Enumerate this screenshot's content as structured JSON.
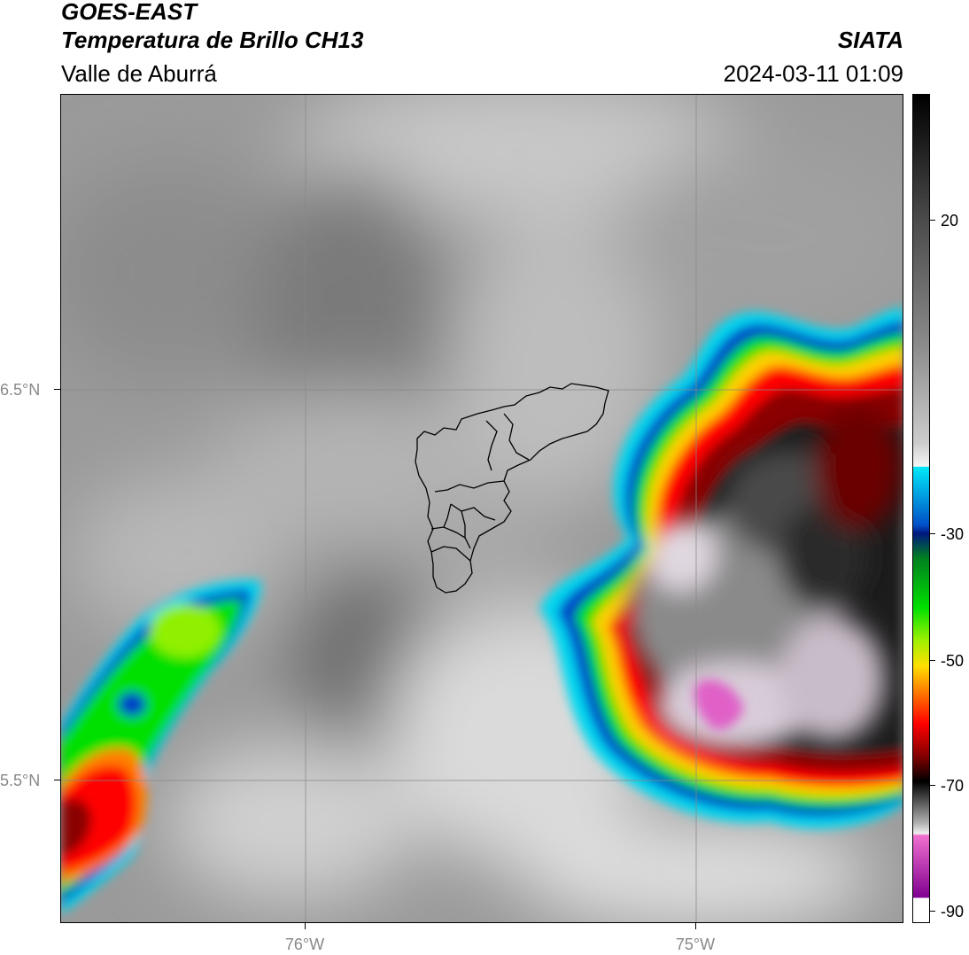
{
  "header": {
    "title_line1": "GOES-EAST",
    "title_line2": "Temperatura de Brillo CH13",
    "subtitle": "Valle de Aburrá",
    "agency": "SIATA",
    "timestamp": "2024-03-11 01:09"
  },
  "map": {
    "lat_labels": [
      "6.5°N",
      "5.5°N"
    ],
    "lon_labels": [
      "76°W",
      "75°W"
    ],
    "colors": {
      "cold_top_pink": "#e060c8",
      "deep_red": "#8a0000",
      "red": "#ff0000",
      "green": "#00e000",
      "blue": "#003cc8",
      "cyan": "#00d8f0"
    }
  },
  "colorbar": {
    "tick_labels": [
      "20",
      "-30",
      "-50",
      "-70",
      "-90"
    ]
  }
}
